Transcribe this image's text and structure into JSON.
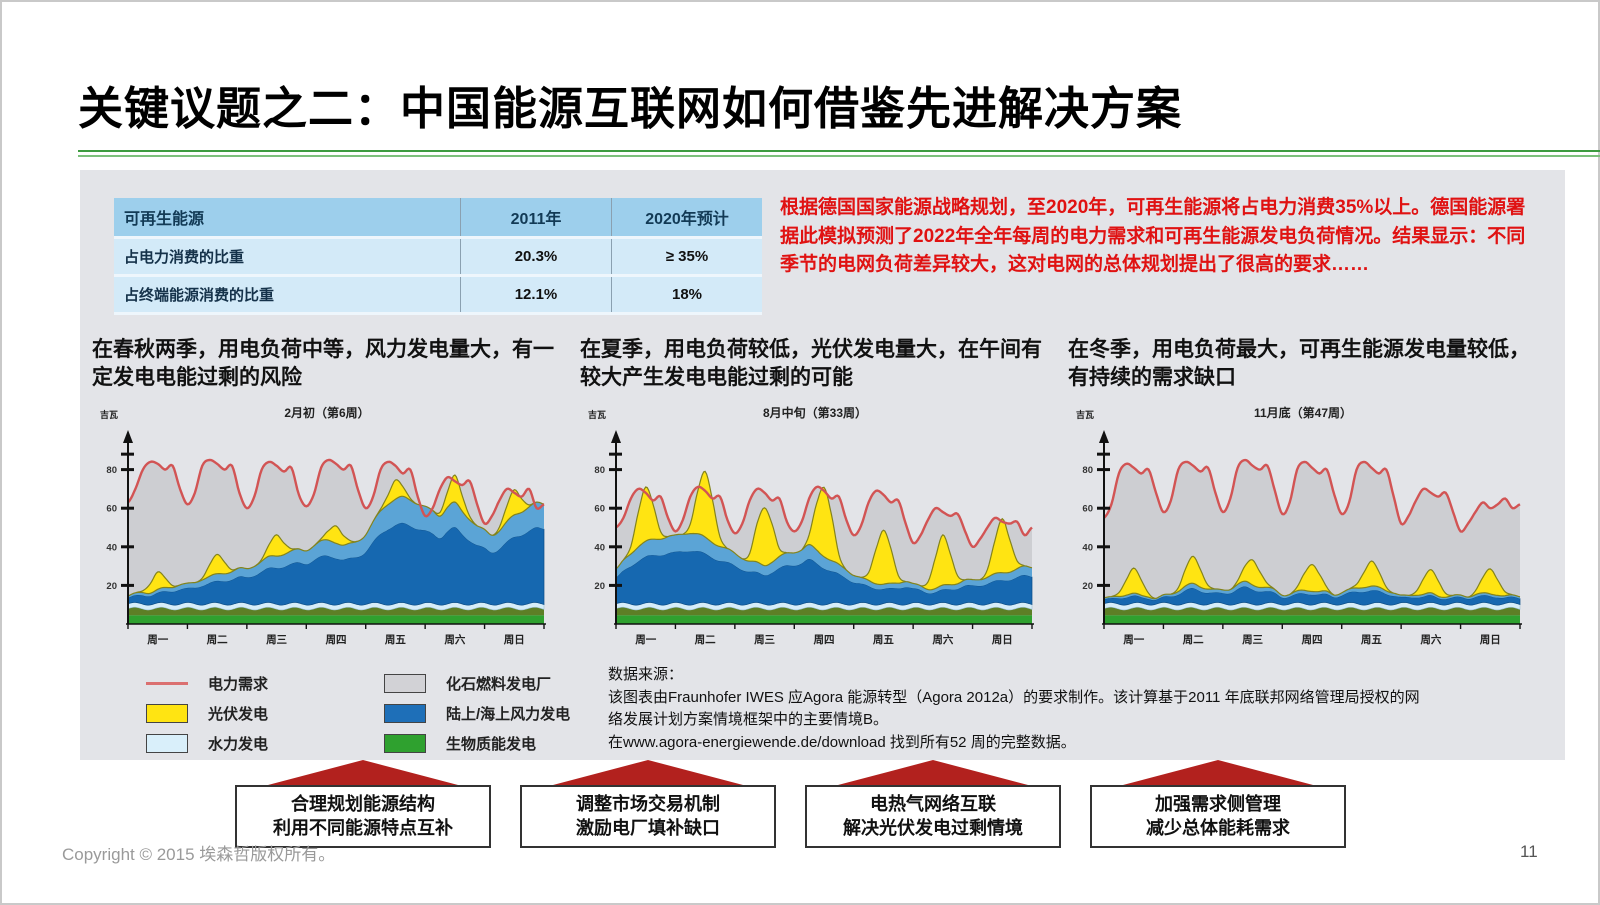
{
  "slide": {
    "title": "关键议题之二：中国能源互联网如何借鉴先进解决方案",
    "footer_copyright": "Copyright © 2015 埃森哲版权所有。",
    "page_number": "11"
  },
  "table": {
    "headers": [
      "可再生能源",
      "2011年",
      "2020年预计"
    ],
    "rows": [
      {
        "label": "占电力消费的比重",
        "y2011": "20.3%",
        "y2020": "≥ 35%"
      },
      {
        "label": "占终端能源消费的比重",
        "y2011": "12.1%",
        "y2020": "18%"
      }
    ]
  },
  "intro_text": "根据德国国家能源战略规划，至2020年，可再生能源将占电力消费35%以上。德国能源署据此模拟预测了2022年全年每周的电力需求和可再生能源发电负荷情况。结果显示：不同季节的电网负荷差异较大，这对电网的总体规划提出了很高的要求……",
  "sections": [
    {
      "caption": "在春秋两季，用电负荷中等，风力发电量大，有一定发电电能过剩的风险"
    },
    {
      "caption": "在夏季，用电负荷较低，光伏发电量大，在午间有较大产生发电电能过剩的可能"
    },
    {
      "caption": "在冬季，用电负荷最大，可再生能源发电量较低，有持续的需求缺口"
    }
  ],
  "legend": {
    "items": [
      {
        "label": "电力需求",
        "type": "line",
        "color": "#db7070"
      },
      {
        "label": "化石燃料发电厂",
        "type": "box",
        "color": "#d2d2d6"
      },
      {
        "label": "光伏发电",
        "type": "box",
        "color": "#ffe412"
      },
      {
        "label": "陆上/海上风力发电",
        "type": "box",
        "color": "#1e6fb8"
      },
      {
        "label": "水力发电",
        "type": "box",
        "color": "#d9effa"
      },
      {
        "label": "生物质能发电",
        "type": "box",
        "color": "#2fa12f"
      }
    ]
  },
  "source": {
    "lines": [
      "数据来源：",
      "该图表由Fraunhofer IWES 应Agora 能源转型（Agora 2012a）的要求制作。该计算基于2011 年底联邦网络管理局授权的网络发展计划方案情境框架中的主要情境B。",
      "在www.agora-energiewende.de/download 找到所有52 周的完整数据。"
    ]
  },
  "actions": [
    {
      "line1": "合理规划能源结构",
      "line2": "利用不同能源特点互补"
    },
    {
      "line1": "调整市场交易机制",
      "line2": "激励电厂填补缺口"
    },
    {
      "line1": "电热气网络互联",
      "line2": "解决光伏发电过剩情境"
    },
    {
      "line1": "加强需求侧管理",
      "line2": "减少总体能耗需求"
    }
  ],
  "chart_colors": {
    "demand_line": "#d25454",
    "fossil": "#cdced2",
    "solar": "#ffe412",
    "solar_edge": "#83831c",
    "hydro": "#d6edf9",
    "wind_dark": "#1668b0",
    "wind_light": "#5ba4d6",
    "biomass_green": "#2fa12f",
    "biomass_olive": "#5d7f26",
    "divider_green": "#3d9b40",
    "arrow_red": "#b2211e",
    "intro_red": "#e01212",
    "table_header_blue": "#9dcfec"
  },
  "chart_data": [
    {
      "type": "area",
      "title": "2月初（第6周）",
      "ylabel": "吉瓦",
      "x_days": [
        "周一",
        "周二",
        "周三",
        "周四",
        "周五",
        "周六",
        "周日"
      ],
      "ylim": [
        0,
        95
      ],
      "yticks": [
        20,
        40,
        60,
        80
      ],
      "points_per_day": 8,
      "biomass_gw": 8,
      "hydro_gw": 2.5,
      "series": [
        {
          "name": "电力需求",
          "type": "line",
          "values": [
            63,
            70,
            80,
            84,
            83,
            80,
            82,
            70,
            62,
            68,
            82,
            85,
            83,
            80,
            82,
            68,
            60,
            66,
            80,
            84,
            82,
            79,
            81,
            67,
            61,
            67,
            81,
            85,
            83,
            80,
            82,
            69,
            60,
            66,
            80,
            84,
            82,
            78,
            80,
            66,
            56,
            60,
            70,
            76,
            74,
            72,
            74,
            62,
            52,
            56,
            64,
            70,
            68,
            66,
            70,
            60,
            62
          ]
        },
        {
          "name": "陆上/海上风力发电",
          "type": "area",
          "values": [
            4,
            5,
            6,
            6,
            7,
            8,
            9,
            10,
            10,
            11,
            13,
            14,
            15,
            16,
            17,
            18,
            18,
            20,
            22,
            24,
            25,
            26,
            27,
            28,
            28,
            30,
            32,
            33,
            32,
            30,
            31,
            33,
            36,
            42,
            48,
            52,
            54,
            55,
            54,
            52,
            50,
            48,
            46,
            50,
            52,
            48,
            44,
            40,
            38,
            36,
            38,
            42,
            46,
            48,
            50,
            52,
            52
          ]
        },
        {
          "name": "光伏发电",
          "type": "area",
          "values": [
            0,
            0,
            1,
            5,
            9,
            5,
            1,
            0,
            0,
            0,
            1,
            6,
            10,
            6,
            1,
            0,
            0,
            0,
            1,
            6,
            11,
            6,
            1,
            0,
            0,
            0,
            1,
            5,
            9,
            5,
            1,
            0,
            0,
            0,
            1,
            5,
            10,
            5,
            1,
            0,
            0,
            0,
            2,
            8,
            14,
            8,
            2,
            0,
            0,
            0,
            2,
            8,
            13,
            7,
            1,
            0,
            0
          ]
        }
      ]
    },
    {
      "type": "area",
      "title": "8月中旬（第33周）",
      "ylabel": "吉瓦",
      "x_days": [
        "周一",
        "周二",
        "周三",
        "周四",
        "周五",
        "周六",
        "周日"
      ],
      "ylim": [
        0,
        95
      ],
      "yticks": [
        20,
        40,
        60,
        80
      ],
      "points_per_day": 8,
      "biomass_gw": 8,
      "hydro_gw": 2.5,
      "series": [
        {
          "name": "电力需求",
          "type": "line",
          "values": [
            50,
            55,
            65,
            70,
            68,
            64,
            66,
            55,
            48,
            54,
            66,
            71,
            69,
            65,
            66,
            54,
            47,
            52,
            64,
            70,
            68,
            64,
            65,
            53,
            48,
            53,
            65,
            71,
            69,
            65,
            66,
            54,
            46,
            51,
            63,
            69,
            67,
            63,
            64,
            52,
            42,
            46,
            54,
            60,
            58,
            56,
            57,
            48,
            40,
            44,
            50,
            55,
            53,
            52,
            53,
            46,
            50
          ]
        },
        {
          "name": "陆上/海上风力发电",
          "type": "area",
          "values": [
            18,
            22,
            26,
            30,
            32,
            33,
            34,
            35,
            35,
            36,
            37,
            36,
            34,
            32,
            30,
            28,
            26,
            24,
            22,
            21,
            20,
            22,
            24,
            26,
            27,
            28,
            30,
            28,
            25,
            22,
            20,
            18,
            15,
            13,
            12,
            11,
            10,
            10,
            11,
            12,
            10,
            9,
            8,
            8,
            9,
            10,
            11,
            12,
            12,
            13,
            14,
            15,
            16,
            17,
            18,
            19,
            19
          ]
        },
        {
          "name": "光伏发电",
          "type": "area",
          "values": [
            0,
            0,
            4,
            18,
            28,
            18,
            4,
            0,
            0,
            0,
            5,
            22,
            34,
            22,
            5,
            0,
            0,
            0,
            4,
            20,
            30,
            20,
            4,
            0,
            0,
            0,
            5,
            24,
            36,
            24,
            5,
            0,
            0,
            0,
            4,
            18,
            28,
            18,
            4,
            0,
            0,
            0,
            4,
            16,
            26,
            16,
            4,
            0,
            0,
            0,
            4,
            17,
            28,
            17,
            4,
            0,
            0
          ]
        }
      ]
    },
    {
      "type": "area",
      "title": "11月底（第47周）",
      "ylabel": "吉瓦",
      "x_days": [
        "周一",
        "周二",
        "周三",
        "周四",
        "周五",
        "周六",
        "周日"
      ],
      "ylim": [
        0,
        95
      ],
      "yticks": [
        20,
        40,
        60,
        80
      ],
      "points_per_day": 8,
      "biomass_gw": 8,
      "hydro_gw": 2.5,
      "series": [
        {
          "name": "电力需求",
          "type": "line",
          "values": [
            55,
            62,
            78,
            83,
            81,
            78,
            80,
            68,
            58,
            64,
            80,
            84,
            82,
            79,
            81,
            68,
            58,
            65,
            81,
            85,
            82,
            80,
            82,
            69,
            57,
            63,
            80,
            84,
            81,
            78,
            80,
            67,
            57,
            63,
            80,
            84,
            81,
            78,
            80,
            66,
            52,
            56,
            64,
            70,
            68,
            66,
            68,
            58,
            48,
            52,
            58,
            63,
            60,
            62,
            65,
            60,
            62
          ]
        },
        {
          "name": "陆上/海上风力发电",
          "type": "area",
          "values": [
            3,
            3,
            4,
            5,
            5,
            4,
            4,
            3,
            4,
            5,
            7,
            9,
            10,
            9,
            8,
            7,
            7,
            8,
            10,
            11,
            10,
            9,
            8,
            7,
            5,
            5,
            6,
            7,
            7,
            6,
            6,
            5,
            6,
            7,
            8,
            9,
            9,
            8,
            7,
            6,
            4,
            4,
            5,
            5,
            5,
            4,
            4,
            4,
            4,
            4,
            5,
            5,
            5,
            5,
            4,
            4,
            4
          ]
        },
        {
          "name": "光伏发电",
          "type": "area",
          "values": [
            0,
            0,
            2,
            8,
            13,
            8,
            2,
            0,
            0,
            0,
            2,
            9,
            14,
            9,
            2,
            0,
            0,
            0,
            2,
            8,
            13,
            8,
            2,
            0,
            0,
            0,
            2,
            9,
            14,
            9,
            2,
            0,
            0,
            0,
            2,
            8,
            13,
            8,
            2,
            0,
            0,
            0,
            2,
            8,
            12,
            8,
            2,
            0,
            0,
            0,
            2,
            8,
            13,
            8,
            2,
            0,
            0
          ]
        }
      ]
    }
  ]
}
